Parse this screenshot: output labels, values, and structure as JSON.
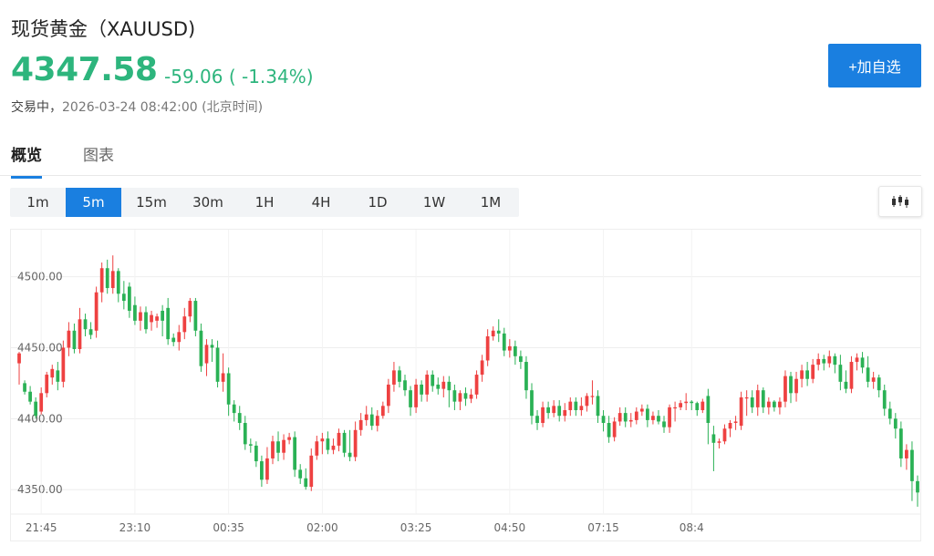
{
  "header": {
    "title": "现货黄金（XAUUSD)",
    "price": "4347.58",
    "change": "-59.06 ( -1.34%)",
    "status": "交易中，",
    "datetime": "2026-03-24 08:42:00 (北京时间)",
    "add_button": "+加自选"
  },
  "tabs": [
    {
      "label": "概览",
      "active": true
    },
    {
      "label": "图表",
      "active": false
    }
  ],
  "periods": [
    "1m",
    "5m",
    "15m",
    "30m",
    "1H",
    "4H",
    "1D",
    "1W",
    "1M"
  ],
  "active_period": "5m",
  "chart_type_icon": "candlestick-icon",
  "colors": {
    "up": "#ee4141",
    "down": "#2ab155",
    "accent": "#1a7fe0",
    "price": "#2db57d"
  },
  "chart_data": {
    "type": "candlestick",
    "y_ticks": [
      4500,
      4450,
      4400,
      4350
    ],
    "y_tick_labels": [
      "4500.00",
      "4450.00",
      "4400.00",
      "4350.00"
    ],
    "x_tick_labels": [
      {
        "label": "21:45",
        "index": 4
      },
      {
        "label": "23:10",
        "index": 21
      },
      {
        "label": "00:35",
        "index": 38
      },
      {
        "label": "02:00",
        "index": 55
      },
      {
        "label": "03:25",
        "index": 72
      },
      {
        "label": "04:50",
        "index": 89
      },
      {
        "label": "07:15",
        "index": 106
      },
      {
        "label": "08:4",
        "index": 122
      }
    ],
    "ylim": [
      4335,
      4520
    ],
    "grid": true,
    "candles": [
      [
        4439,
        4446,
        4424,
        4447
      ],
      [
        4425,
        4419,
        4417,
        4427
      ],
      [
        4419,
        4412,
        4410,
        4423
      ],
      [
        4412,
        4402,
        4400,
        4415
      ],
      [
        4405,
        4418,
        4403,
        4422
      ],
      [
        4418,
        4431,
        4415,
        4433
      ],
      [
        4429,
        4435,
        4424,
        4438
      ],
      [
        4434,
        4426,
        4420,
        4440
      ],
      [
        4426,
        4450,
        4422,
        4455
      ],
      [
        4450,
        4462,
        4444,
        4468
      ],
      [
        4462,
        4449,
        4446,
        4467
      ],
      [
        4449,
        4470,
        4446,
        4478
      ],
      [
        4470,
        4463,
        4458,
        4474
      ],
      [
        4463,
        4459,
        4456,
        4468
      ],
      [
        4462,
        4489,
        4457,
        4493
      ],
      [
        4489,
        4506,
        4482,
        4510
      ],
      [
        4506,
        4492,
        4488,
        4512
      ],
      [
        4492,
        4504,
        4488,
        4515
      ],
      [
        4504,
        4488,
        4482,
        4506
      ],
      [
        4488,
        4483,
        4477,
        4497
      ],
      [
        4493,
        4476,
        4471,
        4496
      ],
      [
        4480,
        4469,
        4466,
        4486
      ],
      [
        4469,
        4475,
        4462,
        4479
      ],
      [
        4475,
        4463,
        4460,
        4479
      ],
      [
        4468,
        4473,
        4462,
        4476
      ],
      [
        4469,
        4472,
        4464,
        4474
      ],
      [
        4476,
        4469,
        4458,
        4480
      ],
      [
        4478,
        4456,
        4452,
        4485
      ],
      [
        4457,
        4454,
        4451,
        4460
      ],
      [
        4454,
        4461,
        4448,
        4466
      ],
      [
        4461,
        4472,
        4456,
        4478
      ],
      [
        4472,
        4483,
        4468,
        4485
      ],
      [
        4483,
        4462,
        4458,
        4485
      ],
      [
        4462,
        4437,
        4433,
        4467
      ],
      [
        4439,
        4452,
        4430,
        4456
      ],
      [
        4452,
        4450,
        4440,
        4456
      ],
      [
        4450,
        4426,
        4422,
        4455
      ],
      [
        4426,
        4432,
        4419,
        4446
      ],
      [
        4432,
        4410,
        4402,
        4436
      ],
      [
        4410,
        4404,
        4398,
        4413
      ],
      [
        4404,
        4397,
        4392,
        4409
      ],
      [
        4397,
        4382,
        4378,
        4402
      ],
      [
        4382,
        4381,
        4376,
        4386
      ],
      [
        4381,
        4370,
        4366,
        4384
      ],
      [
        4370,
        4357,
        4352,
        4374
      ],
      [
        4357,
        4372,
        4354,
        4380
      ],
      [
        4372,
        4384,
        4368,
        4388
      ],
      [
        4384,
        4376,
        4370,
        4391
      ],
      [
        4376,
        4385,
        4371,
        4389
      ],
      [
        4385,
        4387,
        4382,
        4390
      ],
      [
        4387,
        4364,
        4359,
        4391
      ],
      [
        4364,
        4358,
        4354,
        4368
      ],
      [
        4358,
        4352,
        4350,
        4365
      ],
      [
        4352,
        4374,
        4349,
        4379
      ],
      [
        4374,
        4384,
        4371,
        4388
      ],
      [
        4384,
        4386,
        4375,
        4390
      ],
      [
        4386,
        4378,
        4375,
        4391
      ],
      [
        4378,
        4381,
        4375,
        4386
      ],
      [
        4381,
        4390,
        4377,
        4393
      ],
      [
        4390,
        4376,
        4373,
        4392
      ],
      [
        4376,
        4373,
        4370,
        4392
      ],
      [
        4373,
        4392,
        4370,
        4398
      ],
      [
        4392,
        4399,
        4388,
        4404
      ],
      [
        4399,
        4403,
        4395,
        4409
      ],
      [
        4403,
        4395,
        4392,
        4408
      ],
      [
        4395,
        4402,
        4391,
        4406
      ],
      [
        4402,
        4409,
        4400,
        4412
      ],
      [
        4409,
        4424,
        4404,
        4428
      ],
      [
        4424,
        4434,
        4419,
        4440
      ],
      [
        4434,
        4426,
        4422,
        4437
      ],
      [
        4427,
        4420,
        4416,
        4431
      ],
      [
        4420,
        4408,
        4402,
        4423
      ],
      [
        4408,
        4424,
        4404,
        4428
      ],
      [
        4424,
        4417,
        4412,
        4427
      ],
      [
        4417,
        4431,
        4412,
        4434
      ],
      [
        4431,
        4423,
        4419,
        4434
      ],
      [
        4424,
        4421,
        4417,
        4429
      ],
      [
        4421,
        4426,
        4415,
        4430
      ],
      [
        4426,
        4420,
        4408,
        4430
      ],
      [
        4420,
        4412,
        4406,
        4424
      ],
      [
        4412,
        4418,
        4406,
        4420
      ],
      [
        4418,
        4414,
        4409,
        4422
      ],
      [
        4414,
        4417,
        4411,
        4421
      ],
      [
        4417,
        4431,
        4414,
        4434
      ],
      [
        4431,
        4441,
        4426,
        4445
      ],
      [
        4441,
        4458,
        4437,
        4463
      ],
      [
        4458,
        4462,
        4455,
        4465
      ],
      [
        4462,
        4460,
        4454,
        4470
      ],
      [
        4460,
        4448,
        4444,
        4464
      ],
      [
        4448,
        4451,
        4443,
        4456
      ],
      [
        4451,
        4444,
        4438,
        4455
      ],
      [
        4444,
        4440,
        4435,
        4448
      ],
      [
        4440,
        4420,
        4414,
        4444
      ],
      [
        4420,
        4402,
        4396,
        4425
      ],
      [
        4402,
        4397,
        4392,
        4406
      ],
      [
        4397,
        4408,
        4394,
        4412
      ],
      [
        4408,
        4404,
        4400,
        4412
      ],
      [
        4404,
        4409,
        4401,
        4413
      ],
      [
        4409,
        4402,
        4398,
        4413
      ],
      [
        4402,
        4406,
        4398,
        4411
      ],
      [
        4406,
        4412,
        4402,
        4415
      ],
      [
        4412,
        4406,
        4402,
        4415
      ],
      [
        4406,
        4409,
        4402,
        4415
      ],
      [
        4409,
        4416,
        4405,
        4418
      ],
      [
        4416,
        4416,
        4410,
        4427
      ],
      [
        4416,
        4402,
        4397,
        4420
      ],
      [
        4402,
        4397,
        4391,
        4406
      ],
      [
        4397,
        4387,
        4383,
        4402
      ],
      [
        4387,
        4398,
        4384,
        4401
      ],
      [
        4398,
        4404,
        4395,
        4408
      ],
      [
        4404,
        4398,
        4394,
        4408
      ],
      [
        4398,
        4399,
        4394,
        4404
      ],
      [
        4399,
        4405,
        4396,
        4408
      ],
      [
        4405,
        4407,
        4402,
        4410
      ],
      [
        4407,
        4399,
        4394,
        4410
      ],
      [
        4399,
        4402,
        4396,
        4405
      ],
      [
        4402,
        4398,
        4396,
        4406
      ],
      [
        4398,
        4394,
        4390,
        4402
      ],
      [
        4394,
        4408,
        4390,
        4410
      ],
      [
        4408,
        4408,
        4398,
        4412
      ],
      [
        4408,
        4411,
        4406,
        4413
      ],
      [
        4411,
        4412,
        4406,
        4418
      ],
      [
        4412,
        4411,
        4406,
        4413
      ],
      [
        4411,
        4406,
        4402,
        4412
      ],
      [
        4406,
        4412,
        4404,
        4414
      ],
      [
        4416,
        4397,
        4382,
        4421
      ],
      [
        4389,
        4383,
        4363,
        4395
      ],
      [
        4383,
        4384,
        4379,
        4386
      ],
      [
        4384,
        4393,
        4382,
        4396
      ],
      [
        4393,
        4397,
        4387,
        4399
      ],
      [
        4397,
        4398,
        4392,
        4402
      ],
      [
        4395,
        4415,
        4392,
        4419
      ],
      [
        4415,
        4415,
        4402,
        4420
      ],
      [
        4415,
        4408,
        4404,
        4420
      ],
      [
        4408,
        4420,
        4402,
        4424
      ],
      [
        4420,
        4408,
        4404,
        4422
      ],
      [
        4408,
        4412,
        4403,
        4415
      ],
      [
        4412,
        4408,
        4405,
        4413
      ],
      [
        4408,
        4412,
        4403,
        4415
      ],
      [
        4412,
        4430,
        4408,
        4434
      ],
      [
        4430,
        4418,
        4411,
        4433
      ],
      [
        4418,
        4428,
        4412,
        4433
      ],
      [
        4428,
        4434,
        4422,
        4438
      ],
      [
        4434,
        4428,
        4423,
        4440
      ],
      [
        4428,
        4438,
        4425,
        4442
      ],
      [
        4438,
        4442,
        4434,
        4446
      ],
      [
        4442,
        4439,
        4434,
        4445
      ],
      [
        4439,
        4444,
        4436,
        4448
      ],
      [
        4444,
        4438,
        4432,
        4446
      ],
      [
        4438,
        4426,
        4420,
        4445
      ],
      [
        4426,
        4421,
        4418,
        4434
      ],
      [
        4421,
        4440,
        4418,
        4444
      ],
      [
        4440,
        4443,
        4434,
        4446
      ],
      [
        4443,
        4436,
        4432,
        4447
      ],
      [
        4436,
        4426,
        4422,
        4444
      ],
      [
        4426,
        4429,
        4421,
        4433
      ],
      [
        4429,
        4420,
        4415,
        4431
      ],
      [
        4420,
        4407,
        4402,
        4424
      ],
      [
        4407,
        4400,
        4396,
        4412
      ],
      [
        4400,
        4393,
        4386,
        4404
      ],
      [
        4393,
        4372,
        4366,
        4398
      ],
      [
        4372,
        4378,
        4364,
        4382
      ],
      [
        4378,
        4356,
        4342,
        4384
      ],
      [
        4356,
        4348,
        4338,
        4360
      ]
    ]
  }
}
